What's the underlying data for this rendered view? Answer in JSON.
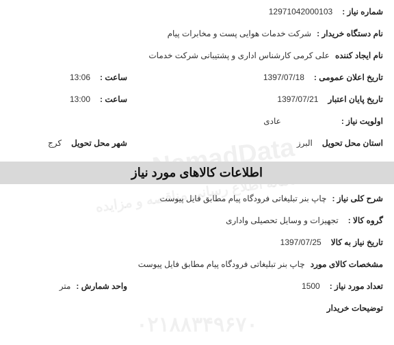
{
  "header": {
    "need_number_label": "شماره نیاز :",
    "need_number_value": "12971042000103",
    "buyer_label": "نام دستگاه خریدار :",
    "buyer_value": "شرکت خدمات هوایی پست و مخابرات پیام",
    "creator_label": "نام ایجاد کننده",
    "creator_value": "علی کرمی کارشناس اداری و پشتیبانی شرکت خدمات",
    "announce_date_label": "تاریخ اعلان عمومی :",
    "announce_date_value": "1397/07/18",
    "announce_time_label": "ساعت :",
    "announce_time_value": "13:06",
    "expire_date_label": "تاریخ پایان اعتبار",
    "expire_date_value": "1397/07/21",
    "expire_time_label": "ساعت :",
    "expire_time_value": "13:00",
    "priority_label": "اولویت نیاز :",
    "priority_value": "عادی",
    "province_label": "استان محل تحویل",
    "province_value": "البرز",
    "city_label": "شهر محل تحویل",
    "city_value": "کرج"
  },
  "section": {
    "title": "اطلاعات کالاهای مورد نیاز",
    "desc_label": "شرح کلی نیاز :",
    "desc_value": "چاپ بنر تبلیغاتی فرودگاه پیام مطابق فایل پیوست",
    "group_label": "گروه کالا :",
    "group_value": "تجهیزات و وسایل تحصیلی واداری",
    "need_date_label": "تاریخ نیاز به کالا",
    "need_date_value": "1397/07/25",
    "spec_label": "مشخصات کالای مورد",
    "spec_value": "چاپ بنر تبلیغاتی فرودگاه پیام مطابق فایل پیوست",
    "qty_label": "تعداد مورد نیاز :",
    "qty_value": "1500",
    "unit_label": "واحد شمارش :",
    "unit_value": "متر",
    "buyer_notes_label": "توضیحات خریدار"
  },
  "watermark": {
    "main": "ParsNamadData",
    "sub": "سامانه اطلاع رسانی مناقصه و مزایده",
    "phone": "۰۲۱۸۸۳۴۹۶۷۰"
  },
  "style": {
    "bg": "#ffffff",
    "section_bg": "#d9d9d9",
    "text": "#333333",
    "label_fontsize": 12,
    "header_fontsize": 18,
    "watermark_color": "rgba(0,0,0,0.06)"
  }
}
